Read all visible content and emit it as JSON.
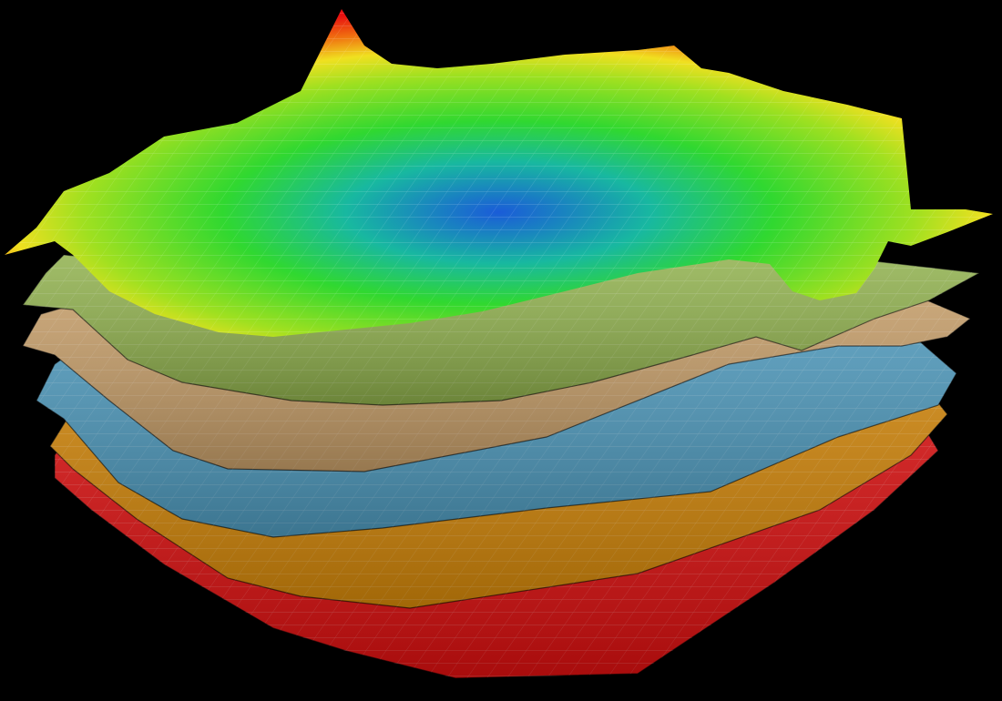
{
  "background": "#000000",
  "layers": [
    {
      "name": "red-layer",
      "color": "#e01010"
    },
    {
      "name": "orange-layer",
      "color": "#d88a0a"
    },
    {
      "name": "blue-layer",
      "color": "#4f9cc0"
    },
    {
      "name": "tan-layer",
      "color": "#c9a06a"
    },
    {
      "name": "olive-layer",
      "color": "#8fb04c"
    }
  ],
  "top_surface": {
    "colormap": [
      "#1a5cd8",
      "#18c040",
      "#40e020",
      "#f0e020",
      "#f07010",
      "#e81010"
    ]
  }
}
